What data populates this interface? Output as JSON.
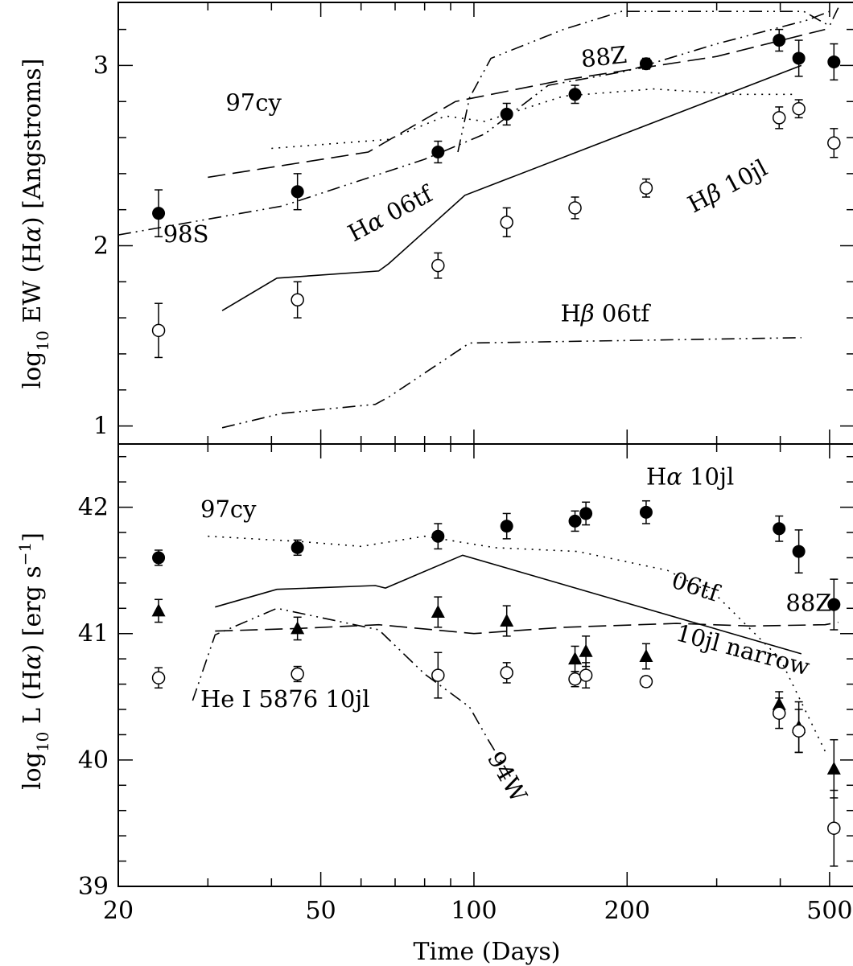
{
  "chart_data": [
    {
      "type": "scatter",
      "panel": "top",
      "ylabel": "log10 EW (Hα) [Angstroms]",
      "ylabel_parts": [
        "log",
        "10",
        " EW (H",
        "α",
        ") [Angstroms]"
      ],
      "xscale": "log",
      "xlim": [
        20,
        560
      ],
      "ylim": [
        0.9,
        3.35
      ],
      "y_ticks": [
        1,
        2,
        3
      ],
      "y_tick_labels": [
        "1",
        "2",
        "3"
      ],
      "series": [
        {
          "name": "Hα 10jl",
          "marker": "filled-circle",
          "x": [
            24,
            45,
            85,
            116,
            158,
            218,
            398,
            435,
            510
          ],
          "y": [
            2.18,
            2.3,
            2.52,
            2.73,
            2.84,
            3.01,
            3.14,
            3.04,
            3.02
          ],
          "err": [
            0.13,
            0.1,
            0.06,
            0.06,
            0.05,
            0.03,
            0.06,
            0.1,
            0.1
          ]
        },
        {
          "name": "Hβ 10jl",
          "marker": "open-circle",
          "x": [
            24,
            45,
            85,
            116,
            158,
            218,
            398,
            435,
            510
          ],
          "y": [
            1.53,
            1.7,
            1.89,
            2.13,
            2.21,
            2.32,
            2.71,
            2.76,
            2.57
          ],
          "err": [
            0.15,
            0.1,
            0.07,
            0.08,
            0.06,
            0.05,
            0.06,
            0.05,
            0.08
          ]
        }
      ],
      "curves": [
        {
          "name": "Hα 06tf",
          "style": "solid",
          "x": [
            32,
            41,
            65,
            68,
            96,
            440
          ],
          "y": [
            1.64,
            1.82,
            1.86,
            1.9,
            2.28,
            3.0
          ]
        },
        {
          "name": "Hβ 06tf",
          "style": "dashdotdot",
          "x": [
            32,
            42,
            64,
            68,
            98,
            440
          ],
          "y": [
            0.99,
            1.07,
            1.12,
            1.16,
            1.46,
            1.49
          ]
        },
        {
          "name": "97cy",
          "style": "dotted",
          "x": [
            40,
            68,
            88,
            105,
            150,
            225,
            330,
            430
          ],
          "y": [
            2.54,
            2.59,
            2.72,
            2.69,
            2.83,
            2.87,
            2.84,
            2.84
          ]
        },
        {
          "name": "88Z",
          "style": "dashed",
          "x": [
            30,
            62,
            92,
            150,
            300,
            490
          ],
          "y": [
            2.38,
            2.52,
            2.8,
            2.92,
            3.05,
            3.2
          ]
        },
        {
          "name": "98S",
          "style": "dashdotdot",
          "x": [
            20,
            42,
            80,
            105,
            140,
            200,
            300,
            450,
            500
          ],
          "y": [
            2.06,
            2.22,
            2.48,
            2.62,
            2.89,
            2.97,
            3.12,
            3.25,
            3.3
          ]
        },
        {
          "name": "Hα 10jl",
          "style": "dashdotdot",
          "x": [
            93,
            98,
            108,
            150,
            195,
            300,
            445,
            478,
            500,
            520
          ],
          "y": [
            2.52,
            2.82,
            3.04,
            3.2,
            3.3,
            3.3,
            3.3,
            3.25,
            3.22,
            3.32
          ]
        }
      ],
      "annotations": [
        {
          "text": "Hα 10jl",
          "parts": [
            "H",
            "α",
            " 10jl"
          ],
          "x": 268,
          "y": 3.42,
          "rotate": 0
        },
        {
          "text": "88Z",
          "parts": [
            "88Z"
          ],
          "x": 163,
          "y": 2.99,
          "rotate": -6
        },
        {
          "text": "97cy",
          "parts": [
            "97cy"
          ],
          "x": 32.5,
          "y": 2.75,
          "rotate": 0
        },
        {
          "text": "Hβ 10jl",
          "parts": [
            "H",
            "β",
            " 10jl"
          ],
          "x": 270,
          "y": 2.18,
          "rotate": -28
        },
        {
          "text": "Hα 06tf",
          "parts": [
            "H",
            "α",
            " 06tf"
          ],
          "x": 58,
          "y": 2.02,
          "rotate": -28
        },
        {
          "text": "98S",
          "parts": [
            "98S"
          ],
          "x": 24.5,
          "y": 2.02,
          "rotate": 0
        },
        {
          "text": "Hβ 06tf",
          "parts": [
            "H",
            "β",
            " 06tf"
          ],
          "x": 148,
          "y": 1.58,
          "rotate": 0
        }
      ]
    },
    {
      "type": "scatter",
      "panel": "bottom",
      "xlabel": "Time (Days)",
      "ylabel": "log10 L (Hα) [erg s-1]",
      "ylabel_parts": [
        "log",
        "10",
        " L (H",
        "α",
        ") [erg s",
        "−1",
        "]"
      ],
      "xscale": "log",
      "xlim": [
        20,
        560
      ],
      "ylim": [
        39.0,
        42.5
      ],
      "x_ticks": [
        20,
        50,
        100,
        200,
        500
      ],
      "x_tick_labels": [
        "20",
        "50",
        "100",
        "200",
        "500"
      ],
      "y_ticks": [
        39,
        40,
        41,
        42
      ],
      "y_tick_labels": [
        "39",
        "40",
        "41",
        "42"
      ],
      "series": [
        {
          "name": "Hα 10jl",
          "marker": "filled-circle",
          "x": [
            24,
            45,
            85,
            116,
            158,
            166,
            218,
            398,
            435,
            510
          ],
          "y": [
            41.6,
            41.68,
            41.77,
            41.85,
            41.89,
            41.95,
            41.96,
            41.83,
            41.65,
            41.23
          ],
          "err": [
            0.06,
            0.06,
            0.1,
            0.1,
            0.08,
            0.09,
            0.09,
            0.1,
            0.17,
            0.2
          ]
        },
        {
          "name": "10jl narrow",
          "marker": "filled-triangle",
          "x": [
            24,
            45,
            85,
            116,
            158,
            166,
            218,
            398,
            435,
            510
          ],
          "y": [
            41.18,
            41.04,
            41.17,
            41.1,
            40.8,
            40.86,
            40.82,
            40.44,
            40.26,
            39.93
          ],
          "err": [
            0.09,
            0.09,
            0.12,
            0.12,
            0.1,
            0.12,
            0.1,
            0.1,
            0.2,
            0.23
          ]
        },
        {
          "name": "He I 5876 10jl",
          "marker": "open-circle",
          "x": [
            24,
            45,
            85,
            116,
            158,
            166,
            218,
            398,
            435,
            510
          ],
          "y": [
            40.65,
            40.68,
            40.67,
            40.69,
            40.64,
            40.67,
            40.62,
            40.37,
            40.23,
            39.46
          ],
          "err": [
            0.08,
            0.06,
            0.18,
            0.08,
            0.06,
            0.1,
            0.04,
            0.12,
            0.17,
            0.3
          ]
        }
      ],
      "curves": [
        {
          "name": "97cy",
          "style": "dotted",
          "x": [
            30,
            45,
            60,
            80,
            110,
            160,
            240,
            300,
            400,
            490
          ],
          "y": [
            41.77,
            41.73,
            41.69,
            41.77,
            41.68,
            41.65,
            41.5,
            41.3,
            40.8,
            40.07
          ]
        },
        {
          "name": "06tf",
          "style": "solid",
          "x": [
            31,
            41,
            64,
            67,
            95,
            440
          ],
          "y": [
            41.21,
            41.35,
            41.38,
            41.36,
            41.62,
            40.84
          ]
        },
        {
          "name": "88Z",
          "style": "dashed",
          "x": [
            31,
            45,
            65,
            100,
            150,
            250,
            350,
            490,
            520
          ],
          "y": [
            41.02,
            41.04,
            41.07,
            41.0,
            41.05,
            41.08,
            41.06,
            41.07,
            41.09
          ]
        },
        {
          "name": "94W",
          "style": "dashdotdot",
          "x": [
            28,
            31,
            41,
            65,
            80,
            98,
            107,
            120
          ],
          "y": [
            40.47,
            40.99,
            41.2,
            41.03,
            40.68,
            40.42,
            40.15,
            39.82
          ]
        }
      ],
      "annotations": [
        {
          "text": "Hα 10jl",
          "parts": [
            "H",
            "α",
            " 10jl"
          ],
          "x": 218,
          "y": 42.18,
          "rotate": 0
        },
        {
          "text": "97cy",
          "parts": [
            "97cy"
          ],
          "x": 29,
          "y": 41.92,
          "rotate": 0
        },
        {
          "text": "06tf",
          "parts": [
            "06tf"
          ],
          "x": 243,
          "y": 41.37,
          "rotate": 18
        },
        {
          "text": "88Z",
          "parts": [
            "88Z"
          ],
          "x": 410,
          "y": 41.18,
          "rotate": 0
        },
        {
          "text": "10jl narrow",
          "parts": [
            "10jl narrow"
          ],
          "x": 248,
          "y": 40.95,
          "rotate": 15
        },
        {
          "text": "He I 5876 10jl",
          "parts": [
            "He I 5876 10jl"
          ],
          "x": 29,
          "y": 40.42,
          "rotate": 0
        },
        {
          "text": "94W",
          "parts": [
            "94W"
          ],
          "x": 106,
          "y": 40.02,
          "rotate": 60
        }
      ]
    }
  ]
}
